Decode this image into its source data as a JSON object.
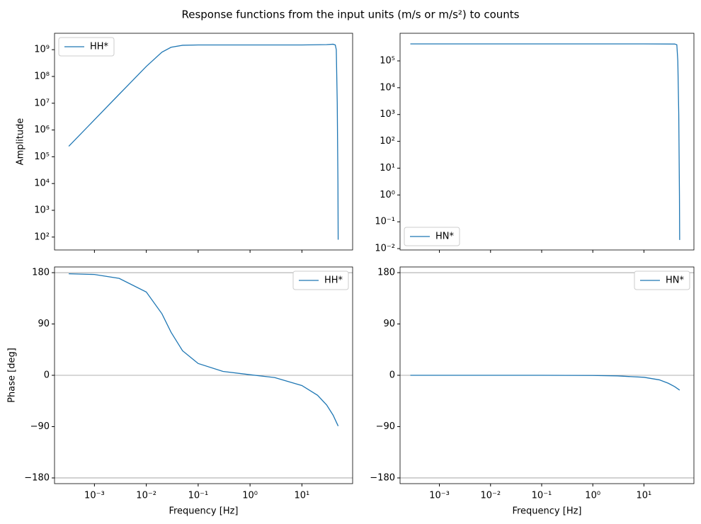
{
  "title": "Response functions from the input units (m/s or m/s²) to counts",
  "chart_data": [
    {
      "type": "line",
      "xscale": "log",
      "yscale": "log",
      "ylabel": "Amplitude",
      "legend": "upper left",
      "xticklabels": false,
      "xlim": [
        0.00017,
        95
      ],
      "ylim": [
        33,
        4100000000
      ],
      "xticks": [
        0.001,
        0.01,
        0.1,
        1,
        10
      ],
      "yticks": [
        {
          "value": 100,
          "label": "10²"
        },
        {
          "value": 1000,
          "label": "10³"
        },
        {
          "value": 10000,
          "label": "10⁴"
        },
        {
          "value": 100000,
          "label": "10⁵"
        },
        {
          "value": 1000000,
          "label": "10⁶"
        },
        {
          "value": 10000000,
          "label": "10⁷"
        },
        {
          "value": 100000000,
          "label": "10⁸"
        },
        {
          "value": 1000000000,
          "label": "10⁹"
        }
      ],
      "x": [
        0.00032,
        0.001,
        0.003,
        0.01,
        0.02,
        0.03,
        0.05,
        0.1,
        1,
        10,
        30,
        40,
        44,
        46,
        48,
        49.5,
        50
      ],
      "series": [
        {
          "name": "HH*",
          "color": "#1f77b4",
          "values": [
            246000,
            2400000,
            21600000,
            237000000,
            810000000,
            1230000000,
            1460000000,
            1500000000,
            1500000000,
            1500000000,
            1550000000,
            1600000000,
            1500000000,
            1000000000,
            10000000,
            10000,
            80
          ]
        }
      ]
    },
    {
      "type": "line",
      "xscale": "log",
      "yscale": "log",
      "legend": "lower left",
      "xticklabels": false,
      "xlim": [
        0.00017,
        95
      ],
      "ylim": [
        0.0089,
        1070000
      ],
      "xticks": [
        0.001,
        0.01,
        0.1,
        1,
        10
      ],
      "yticks": [
        {
          "value": 0.01,
          "label": "10⁻²"
        },
        {
          "value": 0.1,
          "label": "10⁻¹"
        },
        {
          "value": 1,
          "label": "10⁰"
        },
        {
          "value": 10,
          "label": "10¹"
        },
        {
          "value": 100,
          "label": "10²"
        },
        {
          "value": 1000,
          "label": "10³"
        },
        {
          "value": 10000,
          "label": "10⁴"
        },
        {
          "value": 100000,
          "label": "10⁵"
        }
      ],
      "x": [
        0.00027,
        0.001,
        0.01,
        0.1,
        1,
        10,
        40,
        44,
        46,
        48,
        49.5,
        50
      ],
      "series": [
        {
          "name": "HN*",
          "color": "#1f77b4",
          "values": [
            430000,
            430000,
            430000,
            430000,
            430000,
            430000,
            425000,
            400000,
            100000,
            1000,
            1,
            0.021
          ]
        }
      ]
    },
    {
      "type": "line",
      "xscale": "log",
      "yscale": "linear",
      "ylabel": "Phase [deg]",
      "xlabel": "Frequency [Hz]",
      "legend": "upper right",
      "xlim": [
        0.00017,
        95
      ],
      "ylim": [
        -190,
        190
      ],
      "hlines": [
        180,
        0,
        -180
      ],
      "xticks": [
        {
          "value": 0.001,
          "label": "10⁻³"
        },
        {
          "value": 0.01,
          "label": "10⁻²"
        },
        {
          "value": 0.1,
          "label": "10⁻¹"
        },
        {
          "value": 1,
          "label": "10⁰"
        },
        {
          "value": 10,
          "label": "10¹"
        }
      ],
      "yticks": [
        {
          "value": -180,
          "label": "−180"
        },
        {
          "value": -90,
          "label": "−90"
        },
        0,
        90,
        180
      ],
      "x": [
        0.00032,
        0.001,
        0.003,
        0.01,
        0.02,
        0.03,
        0.05,
        0.1,
        0.3,
        1,
        3,
        10,
        20,
        30,
        40,
        50
      ],
      "series": [
        {
          "name": "HH*",
          "color": "#1f77b4",
          "values": [
            178,
            176.8,
            170,
            146,
            108,
            75.5,
            43,
            20.7,
            6.8,
            1,
            -4,
            -18,
            -35,
            -52,
            -70,
            -89
          ]
        }
      ]
    },
    {
      "type": "line",
      "xscale": "log",
      "yscale": "linear",
      "xlabel": "Frequency [Hz]",
      "legend": "upper right",
      "xlim": [
        0.00017,
        95
      ],
      "ylim": [
        -190,
        190
      ],
      "hlines": [
        180,
        0,
        -180
      ],
      "xticks": [
        {
          "value": 0.001,
          "label": "10⁻³"
        },
        {
          "value": 0.01,
          "label": "10⁻²"
        },
        {
          "value": 0.1,
          "label": "10⁻¹"
        },
        {
          "value": 1,
          "label": "10⁰"
        },
        {
          "value": 10,
          "label": "10¹"
        }
      ],
      "yticks": [
        {
          "value": -180,
          "label": "−180"
        },
        {
          "value": -90,
          "label": "−90"
        },
        0,
        90,
        180
      ],
      "x": [
        0.00027,
        0.001,
        0.01,
        0.1,
        1,
        3,
        10,
        20,
        30,
        40,
        50
      ],
      "series": [
        {
          "name": "HN*",
          "color": "#1f77b4",
          "values": [
            0,
            0,
            0,
            0,
            -0.3,
            -1,
            -3.5,
            -8,
            -14,
            -20,
            -26
          ]
        }
      ]
    }
  ]
}
